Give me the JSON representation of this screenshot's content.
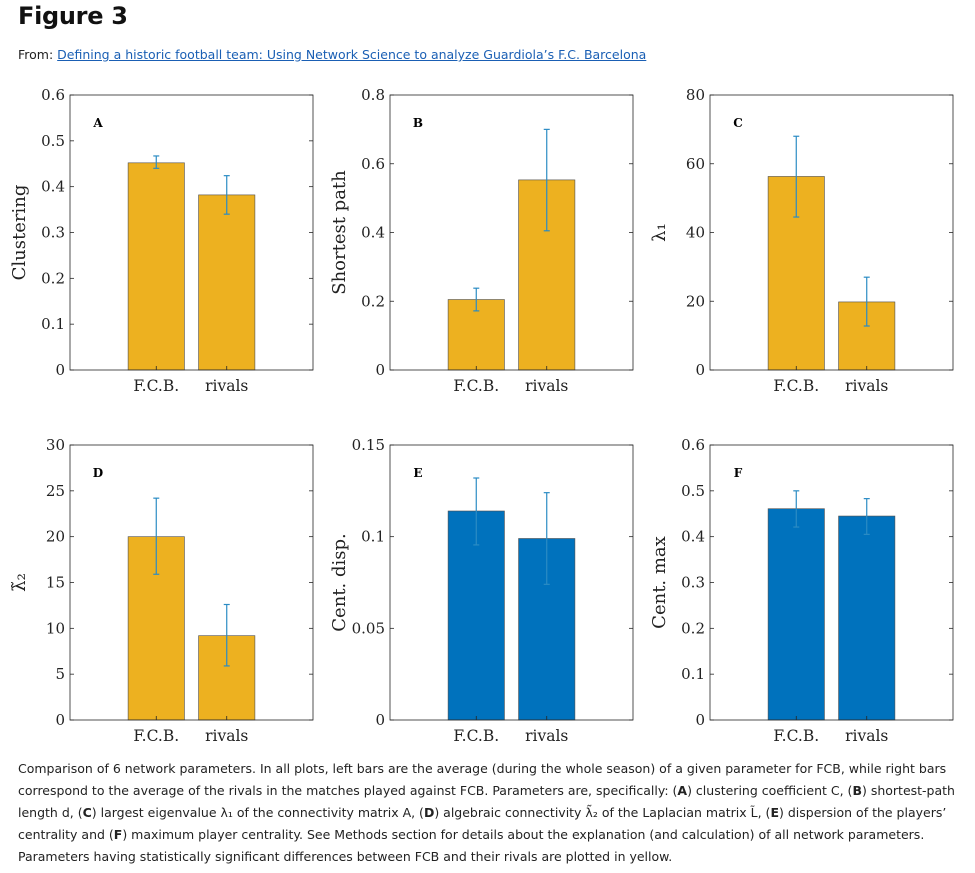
{
  "header": {
    "figure_title": "Figure 3",
    "from_label": "From:",
    "article_link": "Defining a historic football team: Using Network Science to analyze Guardiola’s F.C. Barcelona"
  },
  "caption_parts": [
    {
      "t": "Comparison of 6 network parameters. In all plots, left bars are the average (during the whole season) of a given parameter for FCB, while right bars correspond to the average of the rivals in the matches played against FCB. Parameters are, specifically: (",
      "b": false
    },
    {
      "t": "A",
      "b": true
    },
    {
      "t": ") clustering coefficient C, (",
      "b": false
    },
    {
      "t": "B",
      "b": true
    },
    {
      "t": ") shortest-path length d, (",
      "b": false
    },
    {
      "t": "C",
      "b": true
    },
    {
      "t": ") largest eigenvalue λ₁ of the connectivity matrix A, (",
      "b": false
    },
    {
      "t": "D",
      "b": true
    },
    {
      "t": ") algebraic connectivity λ̃₂ of the Laplacian matrix L̃, (",
      "b": false
    },
    {
      "t": "E",
      "b": true
    },
    {
      "t": ") dispersion of the players’ centrality and (",
      "b": false
    },
    {
      "t": "F",
      "b": true
    },
    {
      "t": ") maximum player centrality. See Methods section for details about the explanation (and calculation) of all network parameters. Parameters having statistically significant differences between FCB and their rivals are plotted in yellow.",
      "b": false
    }
  ],
  "colors": {
    "significant": "#EDB120",
    "not_significant": "#0072BD",
    "error_bar": "#2B8CC4",
    "axis": "#262626"
  },
  "chart_data": [
    {
      "type": "bar",
      "panel": "A",
      "categories": [
        "F.C.B.",
        "rivals"
      ],
      "values": [
        0.452,
        0.382
      ],
      "errors": [
        [
          0.44,
          0.467
        ],
        [
          0.34,
          0.424
        ]
      ],
      "ylabel": "Clustering",
      "ylim": [
        0,
        0.6
      ],
      "yticks": [
        "0",
        "0.1",
        "0.2",
        "0.3",
        "0.4",
        "0.5",
        "0.6"
      ],
      "color": "#EDB120"
    },
    {
      "type": "bar",
      "panel": "B",
      "categories": [
        "F.C.B.",
        "rivals"
      ],
      "values": [
        0.205,
        0.553
      ],
      "errors": [
        [
          0.172,
          0.238
        ],
        [
          0.405,
          0.7
        ]
      ],
      "ylabel": "Shortest path",
      "ylim": [
        0,
        0.8
      ],
      "yticks": [
        "0",
        "0.2",
        "0.4",
        "0.6",
        "0.8"
      ],
      "color": "#EDB120"
    },
    {
      "type": "bar",
      "panel": "C",
      "categories": [
        "F.C.B.",
        "rivals"
      ],
      "values": [
        56.3,
        19.8
      ],
      "errors": [
        [
          44.5,
          68
        ],
        [
          12.8,
          27
        ]
      ],
      "ylabel": "λ₁",
      "ylim": [
        0,
        80
      ],
      "yticks": [
        "0",
        "20",
        "40",
        "60",
        "80"
      ],
      "color": "#EDB120"
    },
    {
      "type": "bar",
      "panel": "D",
      "categories": [
        "F.C.B.",
        "rivals"
      ],
      "values": [
        20.0,
        9.2
      ],
      "errors": [
        [
          15.9,
          24.2
        ],
        [
          5.9,
          12.6
        ]
      ],
      "ylabel": "λ̃₂",
      "ylim": [
        0,
        30
      ],
      "yticks": [
        "0",
        "5",
        "10",
        "15",
        "20",
        "25",
        "30"
      ],
      "color": "#EDB120"
    },
    {
      "type": "bar",
      "panel": "E",
      "categories": [
        "F.C.B.",
        "rivals"
      ],
      "values": [
        0.114,
        0.099
      ],
      "errors": [
        [
          0.0955,
          0.132
        ],
        [
          0.074,
          0.124
        ]
      ],
      "ylabel": "Cent. disp.",
      "ylim": [
        0,
        0.15
      ],
      "yticks": [
        "0",
        "0.05",
        "0.1",
        "0.15"
      ],
      "color": "#0072BD"
    },
    {
      "type": "bar",
      "panel": "F",
      "categories": [
        "F.C.B.",
        "rivals"
      ],
      "values": [
        0.461,
        0.445
      ],
      "errors": [
        [
          0.421,
          0.5
        ],
        [
          0.405,
          0.483
        ]
      ],
      "ylabel": "Cent. max",
      "ylim": [
        0,
        0.6
      ],
      "yticks": [
        "0",
        "0.1",
        "0.2",
        "0.3",
        "0.4",
        "0.5",
        "0.6"
      ],
      "color": "#0072BD"
    }
  ]
}
